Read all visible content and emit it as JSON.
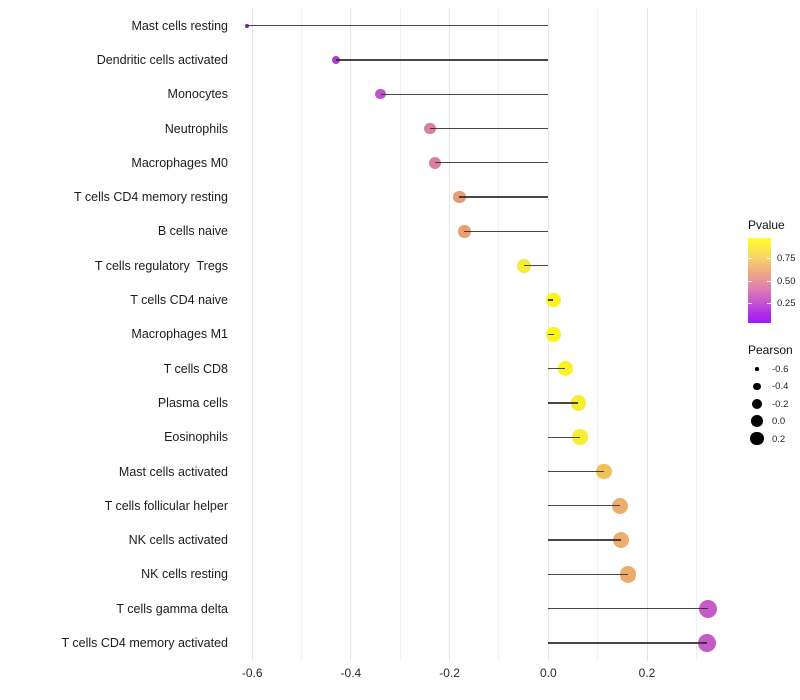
{
  "chart_data": {
    "type": "lollipop",
    "title": "",
    "xlabel": "",
    "ylabel": "",
    "x_axis": {
      "tick_labels": [
        "-0.6",
        "-0.4",
        "-0.2",
        "0.0",
        "0.2"
      ],
      "tick_values": [
        -0.6,
        -0.4,
        -0.2,
        0.0,
        0.2
      ],
      "minor_gridlines": [
        -0.5,
        -0.3,
        -0.1,
        0.1,
        0.3
      ],
      "range": [
        -0.65,
        0.36
      ],
      "baseline": 0.0
    },
    "grid": "vertical-only",
    "legend_position": "right",
    "rows": [
      {
        "label": "Mast cells resting",
        "pearson": -0.61,
        "pvalue_approx": 0.02,
        "color": "#7E22B8"
      },
      {
        "label": "Dendritic cells activated",
        "pearson": -0.43,
        "pvalue_approx": 0.08,
        "color": "#AC3BD4"
      },
      {
        "label": "Monocytes",
        "pearson": -0.34,
        "pvalue_approx": 0.15,
        "color": "#BF53CB"
      },
      {
        "label": "Neutrophils",
        "pearson": -0.24,
        "pvalue_approx": 0.33,
        "color": "#D8809B"
      },
      {
        "label": "Macrophages M0",
        "pearson": -0.23,
        "pvalue_approx": 0.34,
        "color": "#D8829A"
      },
      {
        "label": "T cells CD4 memory resting",
        "pearson": -0.18,
        "pvalue_approx": 0.55,
        "color": "#E89C74"
      },
      {
        "label": "B cells naive",
        "pearson": -0.17,
        "pvalue_approx": 0.56,
        "color": "#E99E72"
      },
      {
        "label": "T cells regulatory  Tregs",
        "pearson": -0.05,
        "pvalue_approx": 0.85,
        "color": "#F5EB3A"
      },
      {
        "label": "T cells CD4 naive",
        "pearson": 0.01,
        "pvalue_approx": 0.93,
        "color": "#FAF51D"
      },
      {
        "label": "Macrophages M1",
        "pearson": 0.011,
        "pvalue_approx": 0.93,
        "color": "#FAF51D"
      },
      {
        "label": "T cells CD8",
        "pearson": 0.034,
        "pvalue_approx": 0.9,
        "color": "#F9F226"
      },
      {
        "label": "Plasma cells",
        "pearson": 0.061,
        "pvalue_approx": 0.87,
        "color": "#F7EE32"
      },
      {
        "label": "Eosinophils",
        "pearson": 0.064,
        "pvalue_approx": 0.87,
        "color": "#F7EE32"
      },
      {
        "label": "Mast cells activated",
        "pearson": 0.113,
        "pvalue_approx": 0.72,
        "color": "#EFC15B"
      },
      {
        "label": "T cells follicular helper",
        "pearson": 0.145,
        "pvalue_approx": 0.62,
        "color": "#ECAD6E"
      },
      {
        "label": "NK cells activated",
        "pearson": 0.147,
        "pvalue_approx": 0.62,
        "color": "#ECAD6E"
      },
      {
        "label": "NK cells resting",
        "pearson": 0.161,
        "pvalue_approx": 0.6,
        "color": "#EBAA70"
      },
      {
        "label": "T cells gamma delta",
        "pearson": 0.324,
        "pvalue_approx": 0.2,
        "color": "#C65AC6"
      },
      {
        "label": "T cells CD4 memory activated",
        "pearson": 0.322,
        "pvalue_approx": 0.2,
        "color": "#C65AC6"
      }
    ],
    "legend": {
      "pvalue": {
        "title": "Pvalue",
        "tick_labels": [
          "0.75",
          "0.50",
          "0.25"
        ],
        "tick_positions_pct": [
          23,
          50,
          77
        ],
        "gradient_stops": [
          {
            "pos": 0,
            "color": "#FFFE29"
          },
          {
            "pos": 22,
            "color": "#F9D666"
          },
          {
            "pos": 42,
            "color": "#EEA588"
          },
          {
            "pos": 58,
            "color": "#DF81AC"
          },
          {
            "pos": 74,
            "color": "#CA5AD0"
          },
          {
            "pos": 90,
            "color": "#AF2BE8"
          },
          {
            "pos": 100,
            "color": "#A31BF2"
          }
        ]
      },
      "pearson": {
        "title": "Pearson",
        "size_labels": [
          "-0.6",
          "-0.4",
          "-0.2",
          "0.0",
          "0.2"
        ],
        "size_values": [
          -0.6,
          -0.4,
          -0.2,
          0.0,
          0.2
        ],
        "key_color": "#000000"
      }
    },
    "colors": {
      "gridline_major": "#e5e5e5",
      "gridline_minor": "#f0f0f0",
      "stem": "#2d2d2d",
      "background": "#ffffff"
    }
  }
}
